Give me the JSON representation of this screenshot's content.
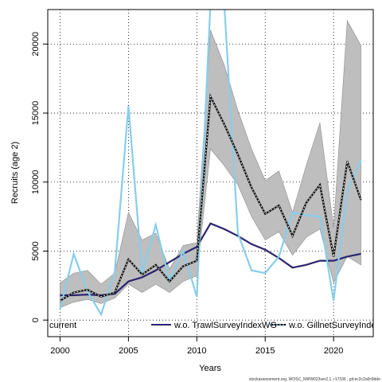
{
  "chart_data": {
    "type": "line",
    "xlabel": "Years",
    "ylabel": "Recruits (age 2)",
    "xlim": [
      1999.1,
      2022.9
    ],
    "ylim": [
      -1200,
      22500
    ],
    "xticks": [
      2000,
      2005,
      2010,
      2015,
      2020
    ],
    "yticks": [
      0,
      5000,
      10000,
      15000,
      20000
    ],
    "grid": true,
    "legend_position": "bottom",
    "footer": "stockassessment.org, WOSC_NWW023ver2.1, r17336 , git:ec2c2a0c8dde",
    "x": [
      2000,
      2001,
      2002,
      2003,
      2004,
      2005,
      2006,
      2007,
      2008,
      2009,
      2010,
      2011,
      2012,
      2013,
      2014,
      2015,
      2016,
      2017,
      2018,
      2019,
      2020,
      2021,
      2022
    ],
    "ci_band": {
      "lower": [
        900,
        1300,
        1500,
        1200,
        1600,
        2600,
        2000,
        2600,
        2000,
        2800,
        3200,
        12400,
        11200,
        9800,
        7500,
        5800,
        6400,
        4700,
        6000,
        6600,
        2700,
        4600,
        4000
      ],
      "upper": [
        2700,
        3400,
        3600,
        2600,
        3400,
        7800,
        5800,
        6300,
        3700,
        5400,
        5600,
        21000,
        18500,
        15200,
        12400,
        10100,
        10800,
        7800,
        11200,
        14300,
        6700,
        21700,
        19900
      ],
      "color": "#bebebe"
    },
    "series": [
      {
        "name": "current",
        "color": "#000000",
        "values": [
          1400,
          2000,
          2200,
          1700,
          2000,
          4400,
          3300,
          4000,
          2800,
          3900,
          4300,
          16200,
          14200,
          12000,
          9600,
          7700,
          8300,
          6100,
          8500,
          9800,
          4600,
          11500,
          8700
        ]
      },
      {
        "name": "w.o. TrawlSurveyIndexWG",
        "color": "#2b2470",
        "values": [
          1800,
          1800,
          1850,
          1800,
          1900,
          2800,
          3100,
          3600,
          4200,
          4800,
          5300,
          7000,
          6600,
          6100,
          5500,
          5100,
          4500,
          3800,
          4000,
          4300,
          4300,
          4600,
          4800
        ]
      },
      {
        "name": "w.o. GillnetSurveyIndex",
        "color": "#87ceeb",
        "values": [
          800,
          4800,
          2100,
          400,
          3500,
          15500,
          3400,
          6900,
          2800,
          5000,
          1700,
          23000,
          23000,
          6300,
          3600,
          3400,
          4600,
          7800,
          7600,
          7500,
          1400,
          9400,
          11600
        ]
      }
    ]
  }
}
